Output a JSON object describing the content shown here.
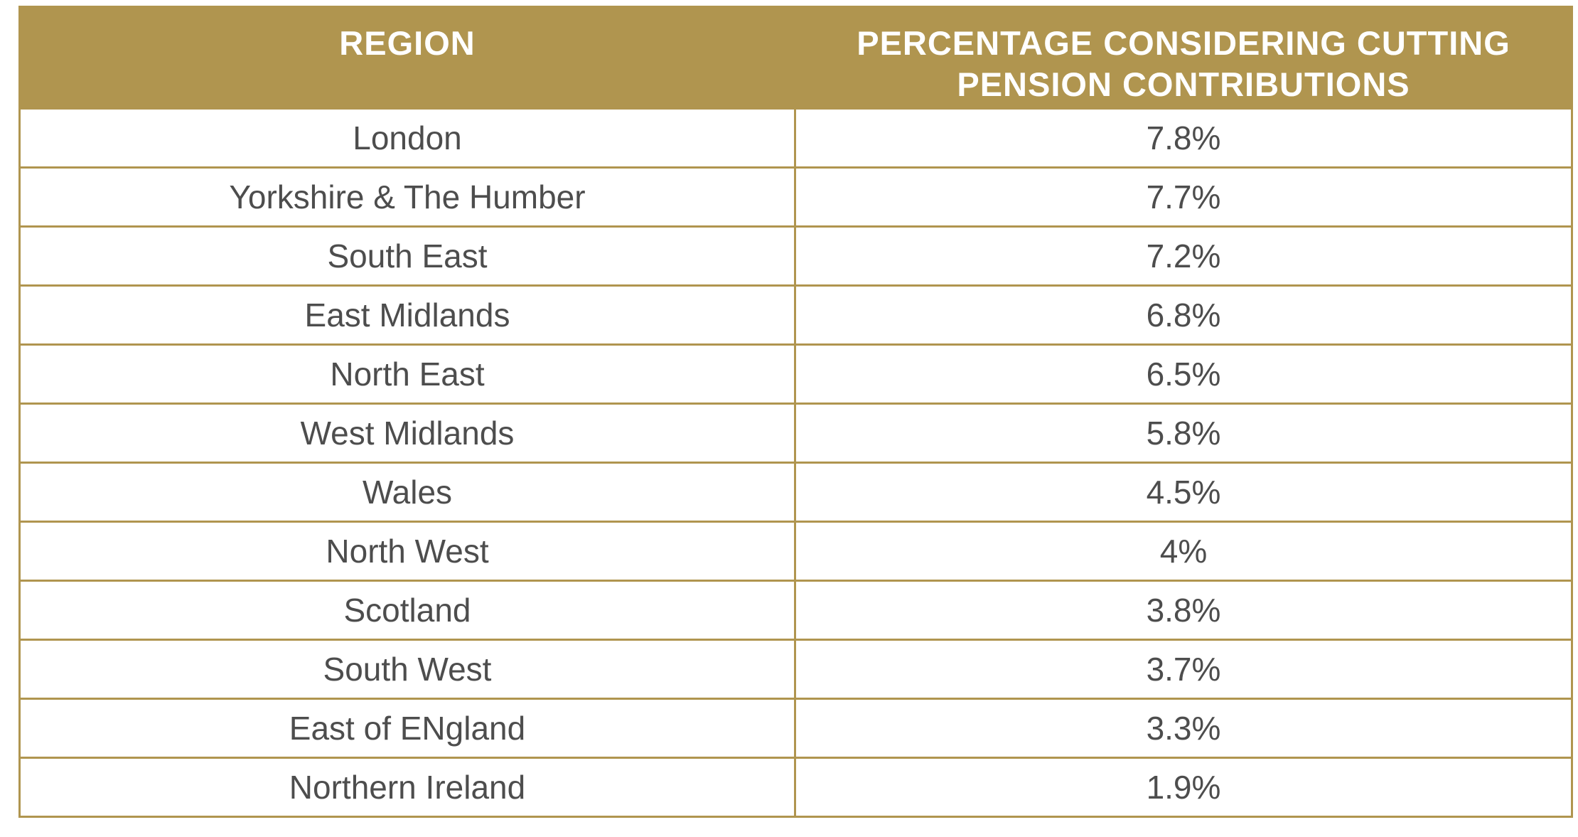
{
  "table": {
    "headers": [
      "REGION",
      "PERCENTAGE CONSIDERING CUTTING PENSION CONTRIBUTIONS"
    ],
    "rows": [
      {
        "region": "London",
        "percentage": "7.8%"
      },
      {
        "region": "Yorkshire & The Humber",
        "percentage": "7.7%"
      },
      {
        "region": "South East",
        "percentage": "7.2%"
      },
      {
        "region": "East Midlands",
        "percentage": "6.8%"
      },
      {
        "region": "North East",
        "percentage": "6.5%"
      },
      {
        "region": "West Midlands",
        "percentage": "5.8%"
      },
      {
        "region": "Wales",
        "percentage": "4.5%"
      },
      {
        "region": "North West",
        "percentage": "4%"
      },
      {
        "region": "Scotland",
        "percentage": "3.8%"
      },
      {
        "region": "South West",
        "percentage": "3.7%"
      },
      {
        "region": "East of ENgland",
        "percentage": "3.3%"
      },
      {
        "region": "Northern Ireland",
        "percentage": "1.9%"
      }
    ]
  },
  "colors": {
    "header_background": "#b0954f",
    "header_text": "#ffffff",
    "border": "#b0954f",
    "cell_text": "#4d4d4d"
  }
}
